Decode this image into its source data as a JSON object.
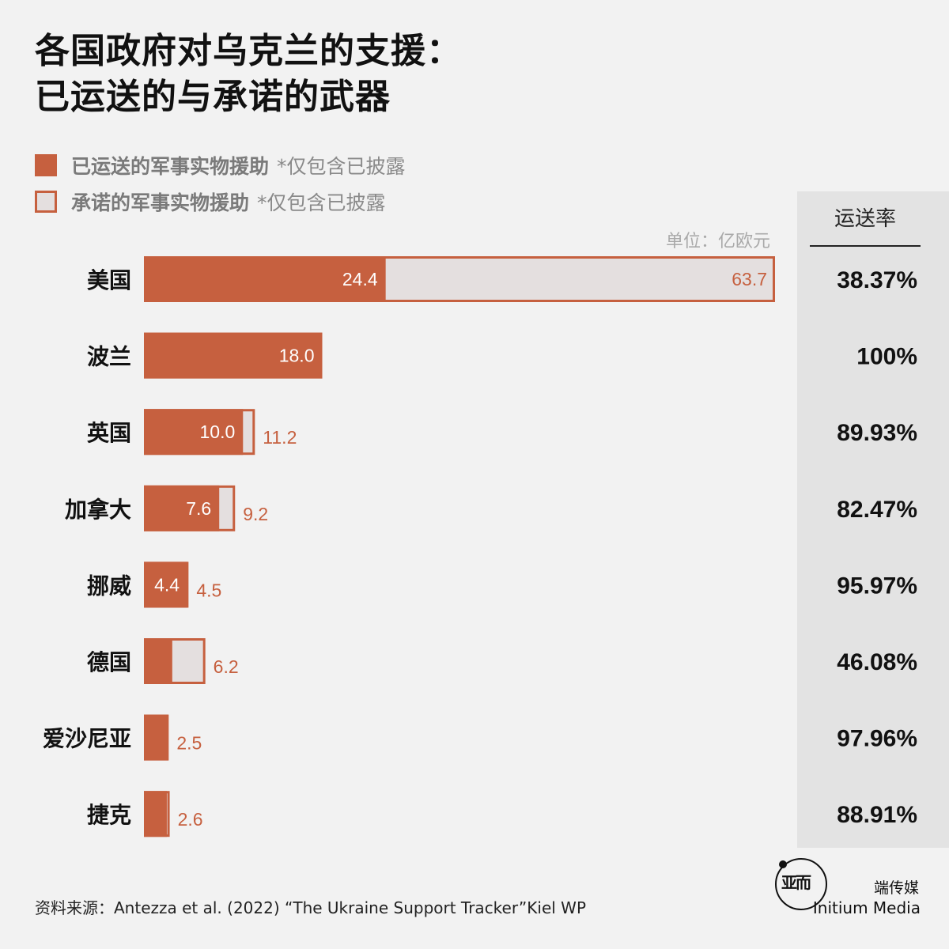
{
  "title": {
    "line1": "各国政府对乌克兰的支援：",
    "line2": "已运送的与承诺的武器"
  },
  "legend": {
    "delivered": {
      "label": "已运送的军事实物援助",
      "note": "*仅包含已披露"
    },
    "promised": {
      "label": "承诺的军事实物援助",
      "note": "*仅包含已披露"
    }
  },
  "colors": {
    "delivered": "#c6603f",
    "promised_fill": "#e4dfdf",
    "promised_outline": "#c6603f",
    "rate_panel": "#e3e3e3"
  },
  "rate_header": "运送率",
  "source": "资料来源：Antezza et al. (2022) “The Ukraine Support Tracker”Kiel WP",
  "brand": {
    "logo_glyph": "亚而",
    "cn": "端传媒",
    "en": "Initium Media"
  },
  "chart_data": {
    "type": "bar",
    "orientation": "horizontal",
    "unit": "单位：亿欧元",
    "categories": [
      "美国",
      "波兰",
      "英国",
      "加拿大",
      "挪威",
      "德国",
      "爱沙尼亚",
      "捷克"
    ],
    "series": [
      {
        "name": "已运送的军事实物援助",
        "values": [
          24.4,
          18.0,
          10.0,
          7.6,
          4.4,
          2.86,
          2.45,
          2.31
        ],
        "value_labels": [
          "24.4",
          "18.0",
          "10.0",
          "7.6",
          "4.4",
          "",
          "",
          ""
        ]
      },
      {
        "name": "承诺的军事实物援助",
        "values": [
          63.7,
          18.0,
          11.2,
          9.2,
          4.5,
          6.2,
          2.5,
          2.6
        ],
        "value_labels": [
          "63.7",
          "",
          "11.2",
          "9.2",
          "4.5",
          "6.2",
          "2.5",
          "2.6"
        ]
      }
    ],
    "delivery_rate": [
      "38.37%",
      "100%",
      "89.93%",
      "82.47%",
      "95.97%",
      "46.08%",
      "97.96%",
      "88.91%"
    ],
    "xlim": [
      0,
      63.7
    ],
    "grid": false
  }
}
